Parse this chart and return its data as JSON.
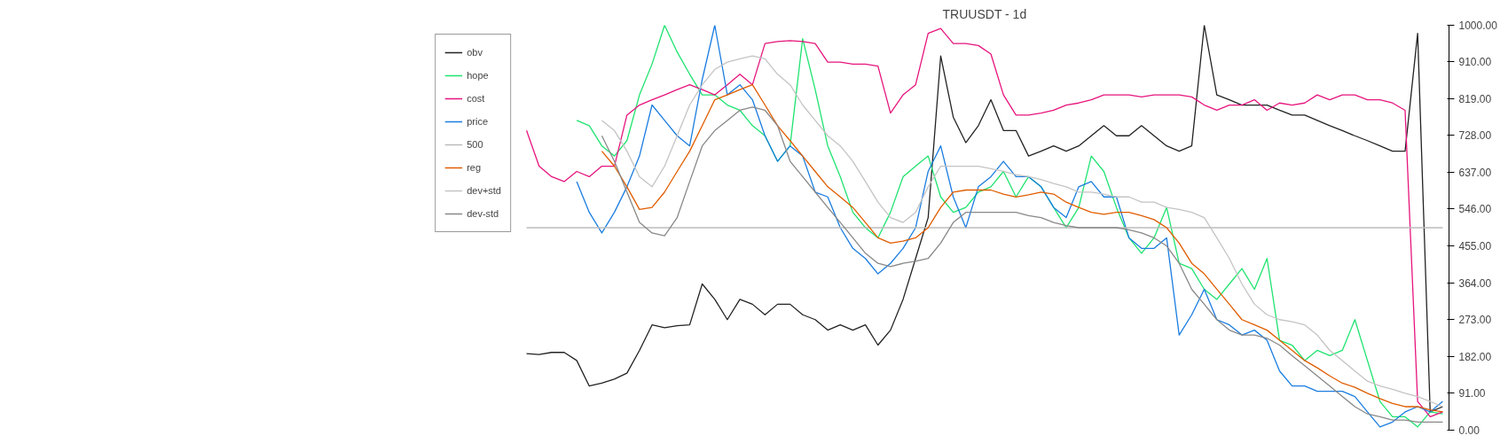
{
  "chart_data": {
    "type": "line",
    "title": "TRUUSDT - 1d",
    "categories": [
      null,
      null,
      null,
      null,
      null,
      null,
      null,
      null,
      null,
      null,
      null,
      null,
      null,
      null,
      null,
      null,
      null,
      null,
      null,
      null,
      null,
      null,
      null,
      null,
      null,
      null,
      null,
      null,
      null,
      null,
      null,
      null,
      null,
      null,
      null,
      null,
      null,
      null,
      null,
      null,
      null,
      null,
      null,
      null,
      null,
      null,
      null,
      null,
      null,
      null,
      null,
      null,
      null,
      null,
      null,
      null,
      null,
      null,
      null,
      null,
      null,
      null,
      null,
      null,
      null,
      null,
      null,
      null,
      null,
      null,
      null,
      null,
      null,
      null
    ],
    "ylim": [
      0,
      1000
    ],
    "yticks": [
      {
        "value": 0,
        "label": "0.00"
      },
      {
        "value": 91,
        "label": "91.00"
      },
      {
        "value": 182,
        "label": "182.00"
      },
      {
        "value": 273,
        "label": "273.00"
      },
      {
        "value": 364,
        "label": "364.00"
      },
      {
        "value": 455,
        "label": "455.00"
      },
      {
        "value": 546,
        "label": "546.00"
      },
      {
        "value": 637,
        "label": "637.00"
      },
      {
        "value": 728,
        "label": "728.00"
      },
      {
        "value": 819,
        "label": "819.00"
      },
      {
        "value": 910,
        "label": "910.00"
      },
      {
        "value": 1000,
        "label": "1000.00"
      }
    ],
    "tick_labels": "y",
    "grid": false,
    "legend": "left",
    "series": [
      {
        "name": "obv",
        "color": "#222222",
        "values": [
          189,
          187,
          192,
          192,
          172,
          109,
          116,
          126,
          141,
          197,
          260,
          253,
          258,
          260,
          361,
          323,
          273,
          323,
          311,
          285,
          311,
          311,
          285,
          273,
          247,
          260,
          247,
          260,
          210,
          247,
          323,
          424,
          525,
          924,
          773,
          710,
          752,
          816,
          740,
          740,
          677,
          689,
          702,
          689,
          702,
          727,
          752,
          727,
          727,
          752,
          727,
          702,
          689,
          702,
          1000,
          828,
          816,
          803,
          803,
          803,
          790,
          778,
          778,
          765,
          752,
          740,
          727,
          715,
          702,
          689,
          689,
          980,
          45,
          58
        ]
      },
      {
        "name": "hope",
        "color": "#1ee36f",
        "values": [
          null,
          null,
          null,
          null,
          765,
          752,
          702,
          677,
          715,
          828,
          904,
          1000,
          934,
          879,
          828,
          828,
          803,
          790,
          752,
          727,
          664,
          702,
          967,
          841,
          702,
          626,
          538,
          500,
          475,
          538,
          626,
          652,
          677,
          576,
          538,
          550,
          588,
          601,
          639,
          576,
          626,
          601,
          550,
          500,
          550,
          677,
          639,
          550,
          475,
          437,
          475,
          550,
          412,
          399,
          348,
          323,
          361,
          399,
          348,
          424,
          222,
          210,
          172,
          197,
          184,
          197,
          273,
          172,
          71,
          33,
          33,
          8,
          45,
          40
        ]
      },
      {
        "name": "cost",
        "color": "#e6147d",
        "values": [
          740,
          652,
          626,
          614,
          639,
          626,
          652,
          652,
          778,
          803,
          816,
          828,
          841,
          853,
          841,
          828,
          853,
          879,
          853,
          955,
          960,
          962,
          960,
          955,
          909,
          909,
          904,
          904,
          899,
          783,
          828,
          853,
          980,
          992,
          955,
          955,
          950,
          929,
          828,
          778,
          778,
          783,
          790,
          803,
          808,
          816,
          828,
          828,
          828,
          823,
          828,
          828,
          828,
          823,
          803,
          790,
          803,
          803,
          816,
          790,
          808,
          803,
          808,
          828,
          816,
          828,
          828,
          816,
          816,
          808,
          790,
          71,
          33,
          45
        ]
      },
      {
        "name": "price",
        "color": "#1a7de0",
        "values": [
          null,
          null,
          null,
          null,
          614,
          538,
          487,
          538,
          601,
          677,
          803,
          765,
          727,
          702,
          866,
          1000,
          828,
          853,
          816,
          727,
          664,
          702,
          677,
          588,
          576,
          500,
          449,
          424,
          386,
          412,
          449,
          500,
          639,
          702,
          576,
          500,
          601,
          626,
          664,
          626,
          626,
          601,
          550,
          525,
          601,
          614,
          576,
          576,
          475,
          449,
          449,
          475,
          235,
          285,
          348,
          273,
          260,
          235,
          247,
          222,
          146,
          109,
          109,
          96,
          96,
          96,
          83,
          45,
          8,
          20,
          45,
          58,
          45,
          71
        ]
      },
      {
        "name": "500",
        "color": "#bbbbbb",
        "values": [
          500,
          500,
          500,
          500,
          500,
          500,
          500,
          500,
          500,
          500,
          500,
          500,
          500,
          500,
          500,
          500,
          500,
          500,
          500,
          500,
          500,
          500,
          500,
          500,
          500,
          500,
          500,
          500,
          500,
          500,
          500,
          500,
          500,
          500,
          500,
          500,
          500,
          500,
          500,
          500,
          500,
          500,
          500,
          500,
          500,
          500,
          500,
          500,
          500,
          500,
          500,
          500,
          500,
          500,
          500,
          500,
          500,
          500,
          500,
          500,
          500,
          500,
          500,
          500,
          500,
          500,
          500,
          500,
          500,
          500,
          500,
          500,
          500,
          500
        ]
      },
      {
        "name": "reg",
        "color": "#e05c00",
        "values": [
          null,
          null,
          null,
          null,
          null,
          null,
          689,
          652,
          601,
          545,
          550,
          588,
          639,
          689,
          752,
          816,
          828,
          841,
          853,
          803,
          752,
          715,
          677,
          639,
          601,
          576,
          550,
          513,
          475,
          462,
          467,
          475,
          500,
          550,
          588,
          593,
          593,
          593,
          583,
          576,
          581,
          588,
          583,
          563,
          550,
          538,
          533,
          538,
          538,
          530,
          520,
          500,
          462,
          412,
          386,
          348,
          311,
          273,
          260,
          247,
          222,
          197,
          172,
          154,
          134,
          116,
          106,
          91,
          78,
          66,
          58,
          58,
          50,
          45
        ]
      },
      {
        "name": "dev+std",
        "color": "#c4c4c4",
        "values": [
          null,
          null,
          null,
          null,
          null,
          null,
          765,
          740,
          689,
          626,
          601,
          652,
          727,
          803,
          853,
          891,
          909,
          917,
          924,
          917,
          879,
          853,
          803,
          765,
          727,
          702,
          664,
          614,
          563,
          525,
          513,
          538,
          601,
          652,
          652,
          652,
          652,
          646,
          639,
          631,
          626,
          619,
          609,
          601,
          588,
          588,
          583,
          576,
          576,
          563,
          563,
          550,
          545,
          538,
          525,
          475,
          424,
          361,
          311,
          285,
          273,
          268,
          260,
          235,
          197,
          172,
          146,
          121,
          109,
          101,
          91,
          83,
          71,
          58
        ]
      },
      {
        "name": "dev-std",
        "color": "#888888",
        "values": [
          null,
          null,
          null,
          null,
          null,
          null,
          727,
          664,
          588,
          513,
          487,
          480,
          525,
          614,
          702,
          740,
          765,
          790,
          798,
          790,
          752,
          664,
          626,
          588,
          550,
          513,
          475,
          437,
          412,
          404,
          412,
          417,
          424,
          462,
          513,
          538,
          538,
          538,
          538,
          538,
          530,
          525,
          513,
          505,
          500,
          500,
          500,
          500,
          495,
          487,
          475,
          455,
          412,
          348,
          311,
          273,
          247,
          235,
          235,
          227,
          210,
          184,
          159,
          134,
          109,
          83,
          58,
          40,
          33,
          25,
          25,
          20,
          20,
          20
        ]
      }
    ]
  }
}
